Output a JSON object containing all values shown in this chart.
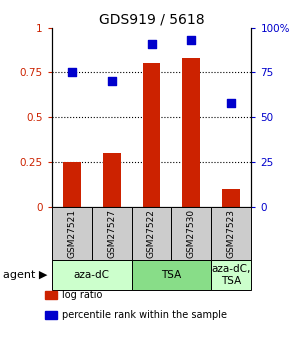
{
  "title": "GDS919 / 5618",
  "samples": [
    "GSM27521",
    "GSM27527",
    "GSM27522",
    "GSM27530",
    "GSM27523"
  ],
  "log_ratio": [
    0.25,
    0.3,
    0.8,
    0.83,
    0.1
  ],
  "percentile_rank": [
    75,
    70,
    91,
    93,
    58
  ],
  "bar_color": "#cc2200",
  "dot_color": "#0000cc",
  "ylim_left": [
    0,
    1.0
  ],
  "ylim_right": [
    0,
    100
  ],
  "yticks_left": [
    0,
    0.25,
    0.5,
    0.75,
    1.0
  ],
  "ytick_labels_left": [
    "0",
    "0.25",
    "0.5",
    "0.75",
    "1"
  ],
  "yticks_right": [
    0,
    25,
    50,
    75,
    100
  ],
  "ytick_labels_right": [
    "0",
    "25",
    "50",
    "75",
    "100%"
  ],
  "groups": [
    {
      "label": "aza-dC",
      "start": 0,
      "end": 1,
      "color": "#ccffcc"
    },
    {
      "label": "TSA",
      "start": 2,
      "end": 3,
      "color": "#88dd88"
    },
    {
      "label": "aza-dC,\nTSA",
      "start": 4,
      "end": 4,
      "color": "#ccffcc"
    }
  ],
  "sample_box_color": "#cccccc",
  "bar_width": 0.45,
  "dot_size": 40,
  "title_fontsize": 10,
  "tick_fontsize": 7.5,
  "sample_fontsize": 6.5,
  "group_fontsize": 7.5,
  "legend_fontsize": 7,
  "agent_fontsize": 8
}
